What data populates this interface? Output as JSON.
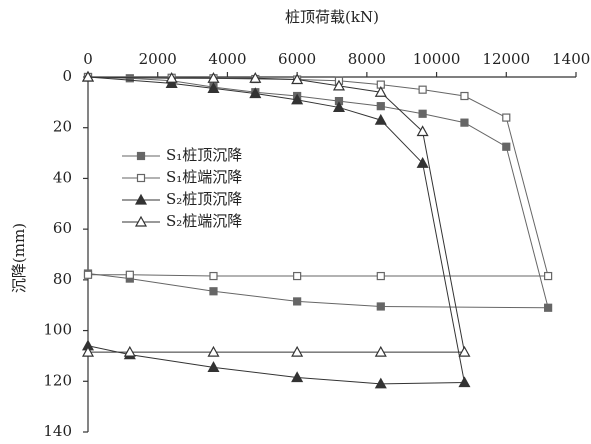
{
  "chart_data": {
    "type": "line",
    "x_label": "桩顶荷载(kN)",
    "y_label": "沉降(mm)",
    "xlim": [
      0,
      14000
    ],
    "xticks": [
      0,
      2000,
      4000,
      6000,
      8000,
      10000,
      12000,
      14000
    ],
    "ylim": [
      0,
      140
    ],
    "yticks": [
      0,
      20,
      40,
      60,
      80,
      100,
      120,
      140
    ],
    "y_inverted": true,
    "x_axis_position": "top",
    "grid": false,
    "series": [
      {
        "name": "S₁桩顶沉降",
        "color": "#666666",
        "marker": "square",
        "filled": true,
        "x": [
          0,
          1200,
          2400,
          3600,
          4800,
          6000,
          7200,
          8400,
          9600,
          10800,
          12000,
          13200,
          8400,
          6000,
          3600,
          1200,
          0
        ],
        "values": [
          0,
          0.5,
          1.5,
          4,
          6,
          7.5,
          9.5,
          11.5,
          14.5,
          18,
          27.5,
          91,
          90.5,
          88.5,
          84.5,
          79.5,
          77.5
        ]
      },
      {
        "name": "S₁桩端沉降",
        "color": "#666666",
        "marker": "square",
        "filled": false,
        "x": [
          0,
          2400,
          3600,
          4800,
          6000,
          7200,
          8400,
          9600,
          10800,
          12000,
          13200,
          8400,
          6000,
          3600,
          1200,
          0
        ],
        "values": [
          0,
          0.3,
          0.5,
          0.8,
          1,
          1.5,
          3,
          5,
          7.5,
          16,
          78.5,
          78.5,
          78.5,
          78.5,
          78,
          78
        ]
      },
      {
        "name": "S₂桩顶沉降",
        "color": "#333333",
        "marker": "triangle",
        "filled": true,
        "x": [
          0,
          2400,
          3600,
          4800,
          6000,
          7200,
          8400,
          9600,
          10800,
          8400,
          6000,
          3600,
          1200,
          0
        ],
        "values": [
          0,
          2.5,
          4.5,
          6.5,
          9,
          12,
          17,
          34,
          120.5,
          121,
          118.5,
          114.5,
          109.5,
          106
        ]
      },
      {
        "name": "S₂桩端沉降",
        "color": "#333333",
        "marker": "triangle",
        "filled": false,
        "x": [
          0,
          2400,
          3600,
          4800,
          6000,
          7200,
          8400,
          9600,
          10800,
          8400,
          6000,
          3600,
          1200,
          0
        ],
        "values": [
          0,
          0.5,
          0.5,
          0.5,
          1,
          3.5,
          6,
          21.5,
          108.5,
          108.5,
          108.5,
          108.5,
          108.5,
          108.5
        ]
      }
    ]
  }
}
